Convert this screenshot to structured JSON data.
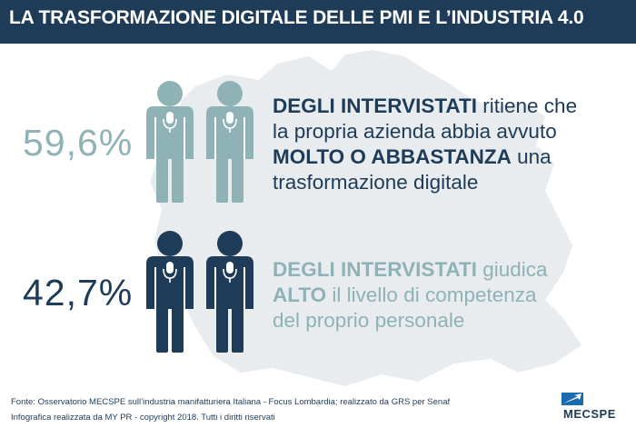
{
  "header": {
    "title": "LA TRASFORMAZIONE DIGITALE DELLE PMI E L’INDUSTRIA 4.0"
  },
  "stats": [
    {
      "value": "59,6%",
      "lines": [
        [
          {
            "text": "DEGLI INTERVISTATI",
            "strong": true
          },
          {
            "text": " ritiene che",
            "strong": false
          }
        ],
        [
          {
            "text": "la propria azienda abbia avvuto",
            "strong": false
          }
        ],
        [
          {
            "text": "MOLTO O ABBASTANZA",
            "strong": true
          },
          {
            "text": " una",
            "strong": false
          }
        ],
        [
          {
            "text": "trasformazione digitale",
            "strong": false
          }
        ]
      ]
    },
    {
      "value": "42,7%",
      "lines": [
        [
          {
            "text": "DEGLI INTERVISTATI",
            "strong": true
          },
          {
            "text": " giudica",
            "strong": false
          }
        ],
        [
          {
            "text": "ALTO",
            "strong": true
          },
          {
            "text": " il livello di competenza",
            "strong": false
          }
        ],
        [
          {
            "text": "del proprio personale",
            "strong": false
          }
        ]
      ]
    }
  ],
  "footer": {
    "lines": [
      "Fonte: Osservatorio MECSPE sull’industria manifatturiera Italiana - Focus Lombardia; realizzato da GRS per Senaf",
      "Infografica realizzata da MY PR - copyright 2018. Tutti i diritti riservati"
    ]
  },
  "logo": "MECSPE"
}
